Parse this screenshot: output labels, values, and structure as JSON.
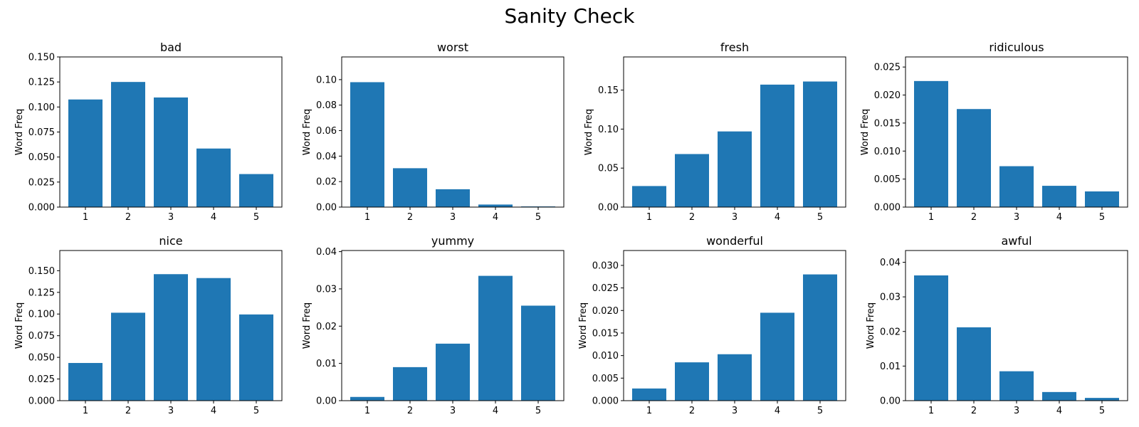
{
  "figure": {
    "title": "Sanity Check"
  },
  "colors": {
    "bar": "#1f77b4",
    "axis": "#000000"
  },
  "chart_data": [
    {
      "type": "bar",
      "title": "bad",
      "xlabel": "",
      "ylabel": "Word Freq",
      "categories": [
        "1",
        "2",
        "3",
        "4",
        "5"
      ],
      "values": [
        0.1075,
        0.125,
        0.1095,
        0.0585,
        0.033
      ],
      "ylim": [
        0,
        0.15
      ],
      "yticks": [
        "0.000",
        "0.025",
        "0.050",
        "0.075",
        "0.100",
        "0.125",
        "0.150"
      ]
    },
    {
      "type": "bar",
      "title": "worst",
      "xlabel": "",
      "ylabel": "Word Freq",
      "categories": [
        "1",
        "2",
        "3",
        "4",
        "5"
      ],
      "values": [
        0.098,
        0.0305,
        0.014,
        0.002,
        0.0005
      ],
      "ylim": [
        0,
        0.1178
      ],
      "yticks": [
        "0.00",
        "0.02",
        "0.04",
        "0.06",
        "0.08",
        "0.10"
      ]
    },
    {
      "type": "bar",
      "title": "fresh",
      "xlabel": "",
      "ylabel": "Word Freq",
      "categories": [
        "1",
        "2",
        "3",
        "4",
        "5"
      ],
      "values": [
        0.027,
        0.068,
        0.097,
        0.157,
        0.161
      ],
      "ylim": [
        0,
        0.1925
      ],
      "yticks": [
        "0.00",
        "0.05",
        "0.10",
        "0.15"
      ]
    },
    {
      "type": "bar",
      "title": "ridiculous",
      "xlabel": "",
      "ylabel": "Word Freq",
      "categories": [
        "1",
        "2",
        "3",
        "4",
        "5"
      ],
      "values": [
        0.0225,
        0.0175,
        0.0073,
        0.0038,
        0.0028
      ],
      "ylim": [
        0,
        0.0268
      ],
      "yticks": [
        "0.000",
        "0.005",
        "0.010",
        "0.015",
        "0.020",
        "0.025"
      ]
    },
    {
      "type": "bar",
      "title": "nice",
      "xlabel": "",
      "ylabel": "Word Freq",
      "categories": [
        "1",
        "2",
        "3",
        "4",
        "5"
      ],
      "values": [
        0.0435,
        0.1015,
        0.146,
        0.1415,
        0.0995
      ],
      "ylim": [
        0,
        0.1733
      ],
      "yticks": [
        "0.000",
        "0.025",
        "0.050",
        "0.075",
        "0.100",
        "0.125",
        "0.150"
      ]
    },
    {
      "type": "bar",
      "title": "yummy",
      "xlabel": "",
      "ylabel": "Word Freq",
      "categories": [
        "1",
        "2",
        "3",
        "4",
        "5"
      ],
      "values": [
        0.001,
        0.009,
        0.0153,
        0.0335,
        0.0255
      ],
      "ylim": [
        0,
        0.0403
      ],
      "yticks": [
        "0.00",
        "0.01",
        "0.02",
        "0.03",
        "0.04"
      ]
    },
    {
      "type": "bar",
      "title": "wonderful",
      "xlabel": "",
      "ylabel": "Word Freq",
      "categories": [
        "1",
        "2",
        "3",
        "4",
        "5"
      ],
      "values": [
        0.0027,
        0.0085,
        0.0103,
        0.0195,
        0.028
      ],
      "ylim": [
        0,
        0.0333
      ],
      "yticks": [
        "0.000",
        "0.005",
        "0.010",
        "0.015",
        "0.020",
        "0.025",
        "0.030"
      ]
    },
    {
      "type": "bar",
      "title": "awful",
      "xlabel": "",
      "ylabel": "Word Freq",
      "categories": [
        "1",
        "2",
        "3",
        "4",
        "5"
      ],
      "values": [
        0.0362,
        0.0212,
        0.0085,
        0.0025,
        0.0008
      ],
      "ylim": [
        0,
        0.0434
      ],
      "yticks": [
        "0.00",
        "0.01",
        "0.02",
        "0.03",
        "0.04"
      ]
    }
  ]
}
